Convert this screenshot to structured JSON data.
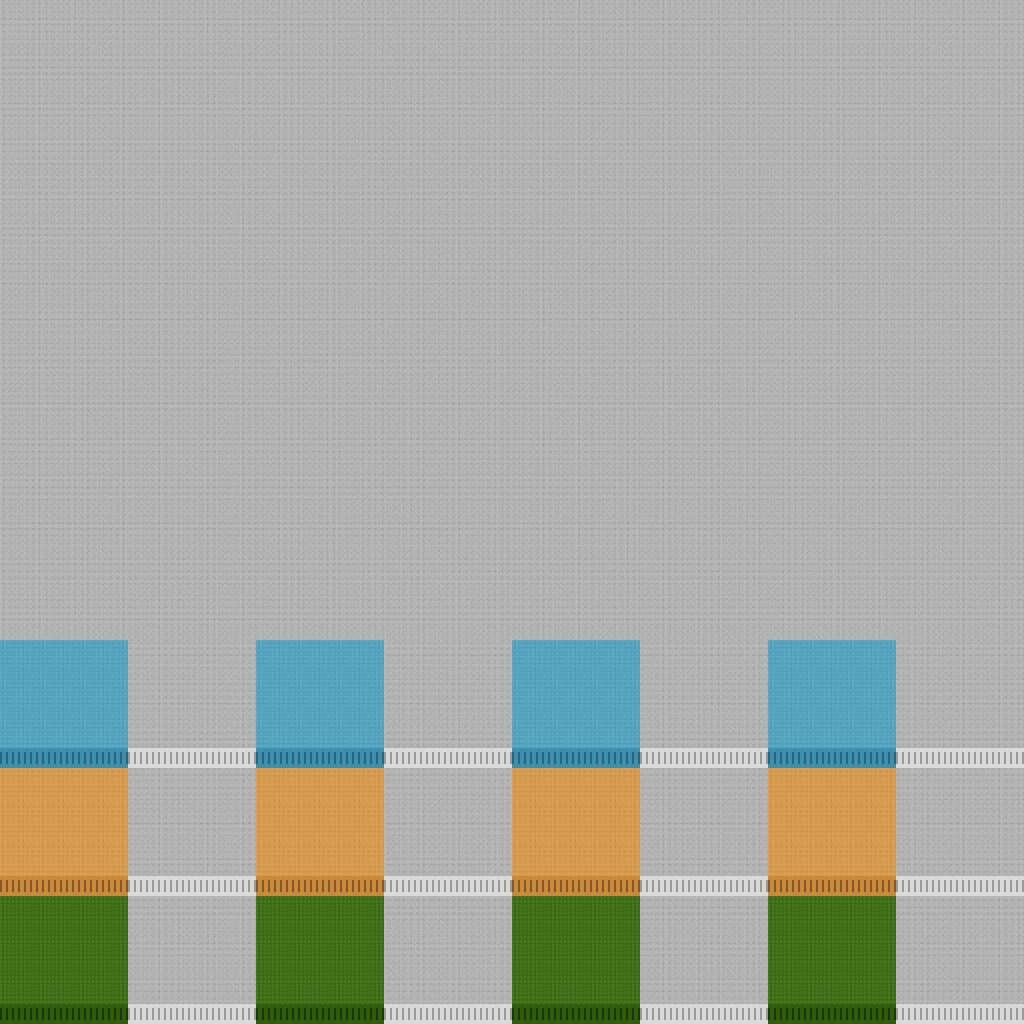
{
  "atlas": {
    "colors": {
      "background": "#b2b2b2",
      "gray_strip": "#d9d9d9",
      "gray_tick": "#8f8f8f"
    },
    "rows": [
      {
        "name": "blue",
        "fill": "#55a4bf",
        "strip": "#3f8eac",
        "tick": "#1f5f78",
        "pattern": [
          "colored",
          "gray",
          "colored",
          "gray",
          "colored",
          "gray",
          "colored",
          "gray"
        ]
      },
      {
        "name": "orange",
        "fill": "#d89a4d",
        "strip": "#c98a3e",
        "tick": "#7c4f1e",
        "pattern": [
          "colored",
          "gray",
          "colored",
          "gray",
          "colored",
          "gray",
          "colored",
          "gray"
        ]
      },
      {
        "name": "green",
        "fill": "#3e6d14",
        "strip": "#315b0d",
        "tick": "#153204",
        "pattern": [
          "colored",
          "gray",
          "colored",
          "gray",
          "colored",
          "gray",
          "colored",
          "gray"
        ]
      }
    ]
  }
}
